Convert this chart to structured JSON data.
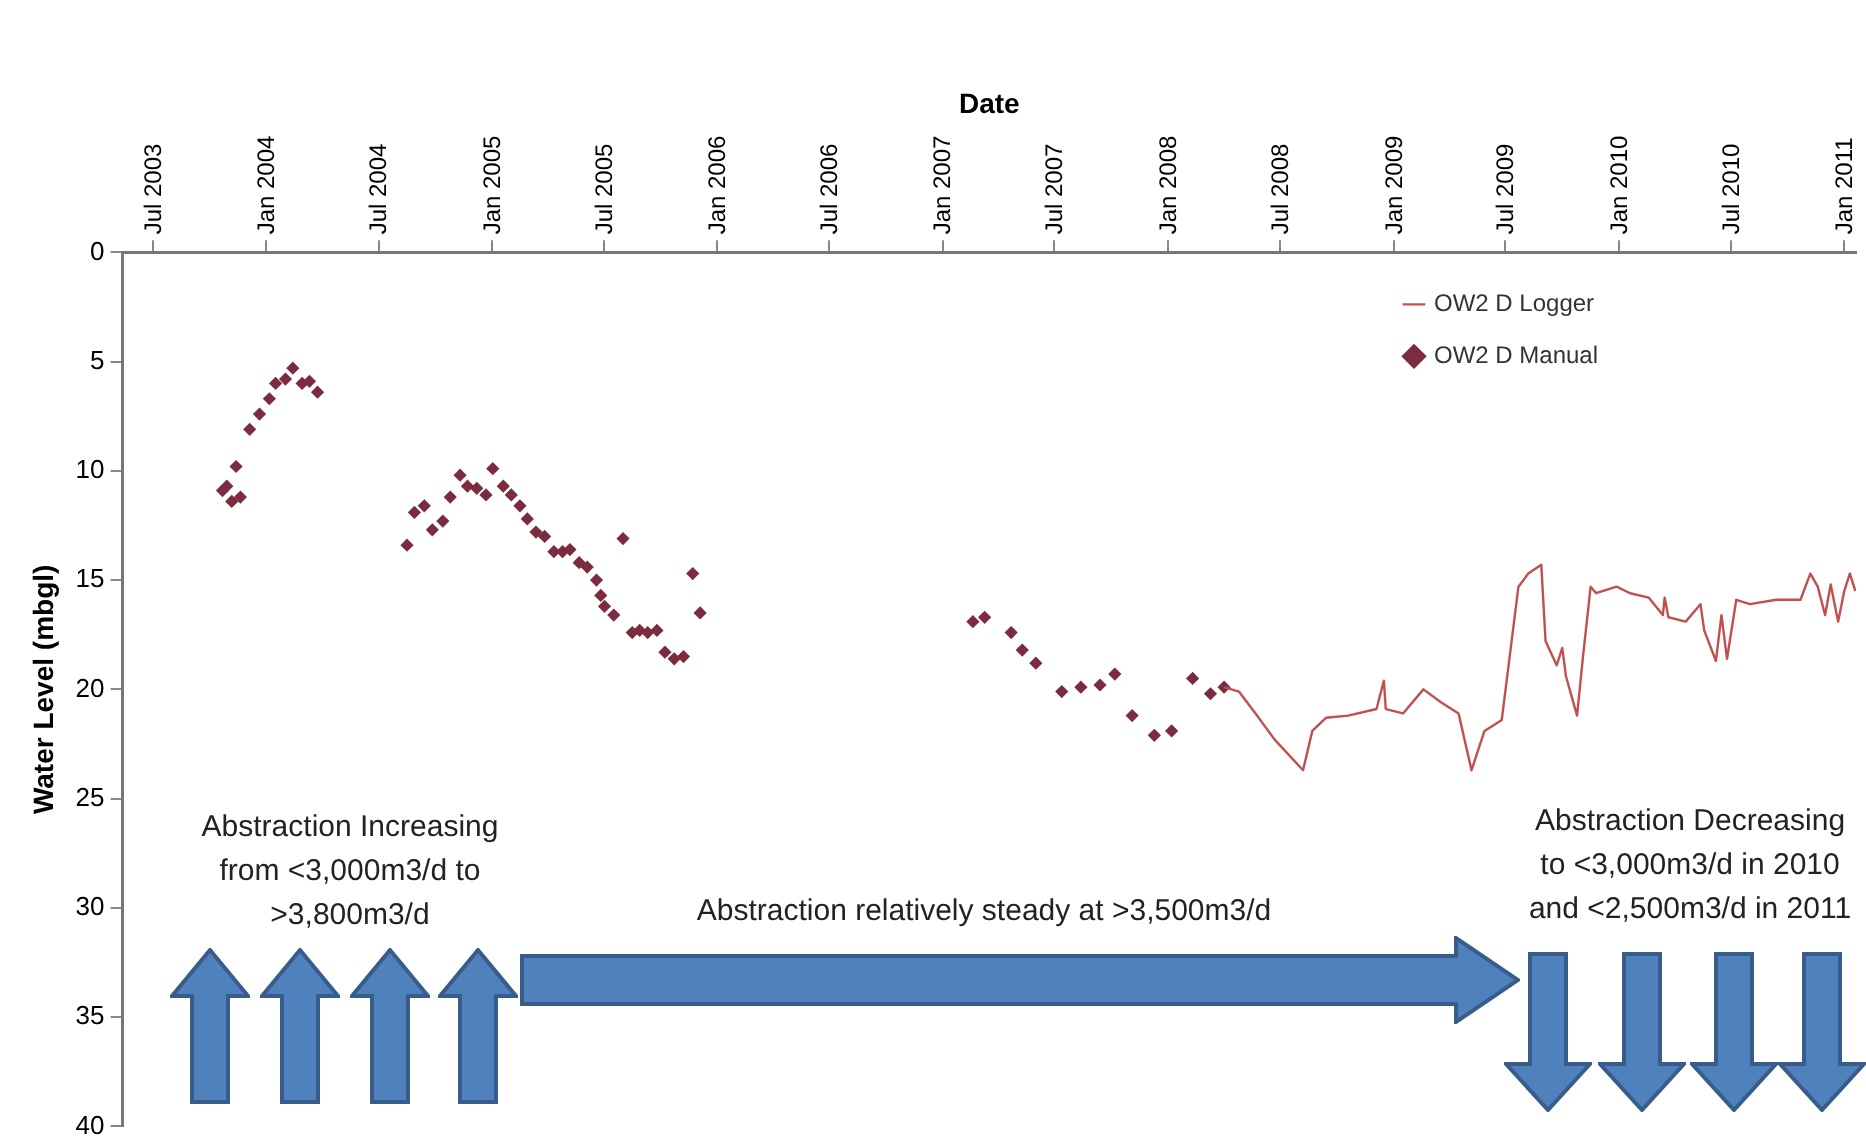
{
  "chart_data": {
    "type": "line",
    "xlabel": "Date",
    "ylabel": "Water Level (mbgl)",
    "xlim": [
      "2003-05-13",
      "2011-01-20"
    ],
    "xticks": [
      {
        "value": "2003-07",
        "label": "Jul 2003"
      },
      {
        "value": "2004-01",
        "label": "Jan 2004"
      },
      {
        "value": "2004-07",
        "label": "Jul 2004"
      },
      {
        "value": "2005-01",
        "label": "Jan 2005"
      },
      {
        "value": "2005-07",
        "label": "Jul 2005"
      },
      {
        "value": "2006-01",
        "label": "Jan 2006"
      },
      {
        "value": "2006-07",
        "label": "Jul 2006"
      },
      {
        "value": "2007-01",
        "label": "Jan 2007"
      },
      {
        "value": "2007-07",
        "label": "Jul 2007"
      },
      {
        "value": "2008-01",
        "label": "Jan 2008"
      },
      {
        "value": "2008-07",
        "label": "Jul 2008"
      },
      {
        "value": "2009-01",
        "label": "Jan 2009"
      },
      {
        "value": "2009-07",
        "label": "Jul 2009"
      },
      {
        "value": "2010-01",
        "label": "Jan 2010"
      },
      {
        "value": "2010-07",
        "label": "Jul 2010"
      },
      {
        "value": "2011-01",
        "label": "Jan 2011"
      }
    ],
    "ylim": [
      40,
      0
    ],
    "yticks": [
      0,
      5,
      10,
      15,
      20,
      25,
      30,
      35,
      40
    ],
    "grid": false,
    "legend": "top right",
    "annotations": [
      "Abstraction Increasing\nfrom <3,000m3/d to\n>3,800m3/d",
      "Abstraction relatively steady at >3,500m3/d",
      "Abstraction Decreasing\nto <3,000m3/d in 2010\nand <2,500m3/d in 2011"
    ],
    "series": [
      {
        "name": "OW2 D Logger",
        "type": "line",
        "color": "#c0504d",
        "x": [
          "2008-04-01",
          "2008-04-25",
          "2008-05-22",
          "2008-06-22",
          "2008-08-07",
          "2008-08-22",
          "2008-09-13",
          "2008-10-19",
          "2008-12-04",
          "2008-12-16",
          "2008-12-19",
          "2009-01-16",
          "2009-02-18",
          "2009-03-19",
          "2009-04-16",
          "2009-05-07",
          "2009-05-28",
          "2009-06-25",
          "2009-07-22",
          "2009-08-07",
          "2009-08-28",
          "2009-09-04",
          "2009-09-22",
          "2009-10-01",
          "2009-10-07",
          "2009-10-25",
          "2009-11-04",
          "2009-11-16",
          "2009-11-25",
          "2009-12-28",
          "2010-01-19",
          "2010-02-18",
          "2010-03-13",
          "2010-03-16",
          "2010-03-22",
          "2010-04-19",
          "2010-05-13",
          "2010-05-19",
          "2010-06-07",
          "2010-06-16",
          "2010-06-25",
          "2010-07-10",
          "2010-08-01",
          "2010-09-13",
          "2010-10-22",
          "2010-11-07",
          "2010-11-19",
          "2010-12-01",
          "2010-12-10",
          "2010-12-22",
          "2011-01-01",
          "2011-01-10",
          "2011-01-19"
        ],
        "values": [
          19.9,
          20.1,
          21.1,
          22.3,
          23.7,
          21.9,
          21.3,
          21.2,
          20.9,
          19.6,
          20.9,
          21.1,
          20.0,
          20.6,
          21.1,
          23.7,
          21.9,
          21.4,
          15.3,
          14.7,
          14.3,
          17.8,
          18.9,
          18.1,
          19.4,
          21.2,
          18.4,
          15.3,
          15.6,
          15.3,
          15.6,
          15.8,
          16.6,
          15.8,
          16.7,
          16.9,
          16.1,
          17.3,
          18.7,
          16.6,
          18.6,
          15.9,
          16.1,
          15.9,
          15.9,
          14.7,
          15.3,
          16.6,
          15.2,
          16.9,
          15.5,
          14.7,
          15.5
        ]
      },
      {
        "name": "OW2 D Manual",
        "type": "scatter",
        "marker": "diamond",
        "color": "#7b2c3f",
        "x": [
          "2003-10-22",
          "2003-10-29",
          "2003-11-06",
          "2003-11-13",
          "2003-11-20",
          "2003-12-05",
          "2003-12-21",
          "2004-01-06",
          "2004-01-16",
          "2004-02-01",
          "2004-02-13",
          "2004-02-28",
          "2004-03-11",
          "2004-03-24",
          "2004-08-16",
          "2004-08-28",
          "2004-09-13",
          "2004-09-26",
          "2004-10-13",
          "2004-10-25",
          "2004-11-10",
          "2004-11-22",
          "2004-12-07",
          "2004-12-22",
          "2005-01-02",
          "2005-01-19",
          "2005-02-01",
          "2005-02-15",
          "2005-02-27",
          "2005-03-13",
          "2005-03-27",
          "2005-04-11",
          "2005-04-25",
          "2005-05-07",
          "2005-05-22",
          "2005-06-04",
          "2005-06-19",
          "2005-06-26",
          "2005-07-02",
          "2005-07-17",
          "2005-08-01",
          "2005-08-16",
          "2005-08-28",
          "2005-09-10",
          "2005-09-25",
          "2005-10-08",
          "2005-10-23",
          "2005-11-07",
          "2005-11-22",
          "2005-12-04",
          "2007-02-19",
          "2007-03-10",
          "2007-04-22",
          "2007-05-10",
          "2007-06-01",
          "2007-07-13",
          "2007-08-13",
          "2007-09-13",
          "2007-10-07",
          "2007-11-04",
          "2007-12-10",
          "2008-01-07",
          "2008-02-10",
          "2008-03-10",
          "2008-04-01"
        ],
        "values": [
          10.9,
          10.7,
          11.4,
          9.8,
          11.2,
          8.1,
          7.4,
          6.7,
          6.0,
          5.8,
          5.3,
          6.0,
          5.9,
          6.4,
          13.4,
          11.9,
          11.6,
          12.7,
          12.3,
          11.2,
          10.2,
          10.7,
          10.8,
          11.1,
          9.9,
          10.7,
          11.1,
          11.6,
          12.2,
          12.8,
          13.0,
          13.7,
          13.7,
          13.6,
          14.2,
          14.4,
          15.0,
          15.7,
          16.2,
          16.6,
          13.1,
          17.4,
          17.3,
          17.4,
          17.3,
          18.3,
          18.6,
          18.5,
          14.7,
          16.5,
          16.9,
          16.7,
          17.4,
          18.2,
          18.8,
          20.1,
          19.9,
          19.8,
          19.3,
          21.2,
          22.1,
          21.9,
          19.5,
          20.2,
          19.9
        ]
      }
    ]
  }
}
